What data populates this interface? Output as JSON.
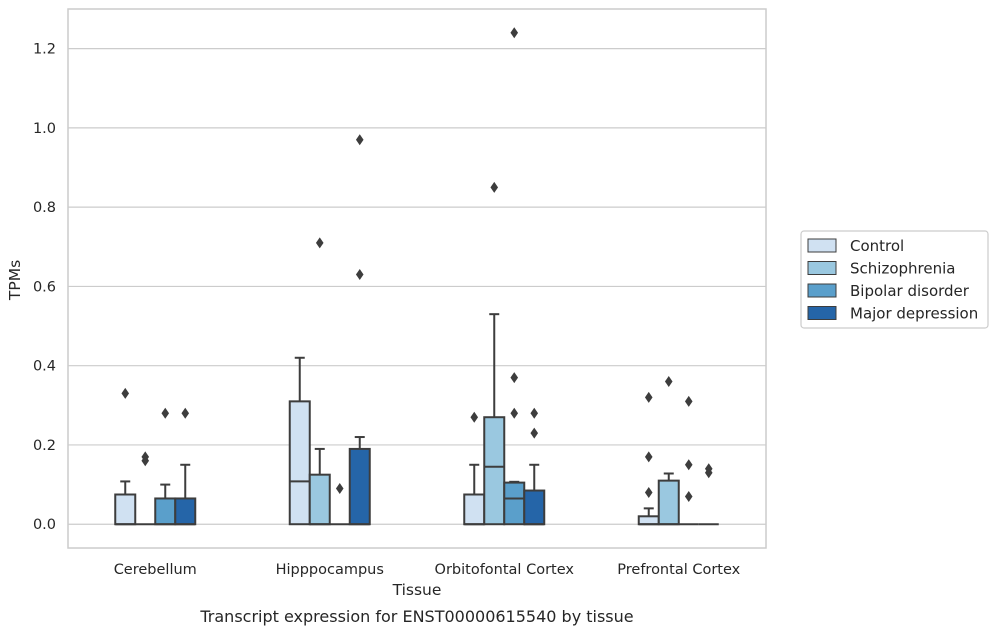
{
  "chart_data": {
    "type": "box",
    "caption": "Transcript expression for ENST00000615540 by tissue",
    "xlabel": "Tissue",
    "ylabel": "TPMs",
    "ylim": [
      -0.06,
      1.3
    ],
    "yticks": [
      0.0,
      0.2,
      0.4,
      0.6,
      0.8,
      1.0,
      1.2
    ],
    "ytick_labels": [
      "0.0",
      "0.2",
      "0.4",
      "0.6",
      "0.8",
      "1.0",
      "1.2"
    ],
    "grid": "horizontal",
    "legend_position": "right",
    "categories": [
      "Cerebellum",
      "Hipppocampus",
      "Orbitofontal Cortex",
      "Prefrontal Cortex"
    ],
    "series": [
      {
        "name": "Control",
        "color": "#d0e1f2",
        "boxes": [
          {
            "q1": 0.0,
            "median": 0.0,
            "q3": 0.075,
            "whisker_low": 0.0,
            "whisker_high": 0.108,
            "outliers": [
              0.33
            ]
          },
          {
            "q1": 0.0,
            "median": 0.108,
            "q3": 0.31,
            "whisker_low": 0.0,
            "whisker_high": 0.42,
            "outliers": []
          },
          {
            "q1": 0.0,
            "median": 0.0,
            "q3": 0.075,
            "whisker_low": 0.0,
            "whisker_high": 0.15,
            "outliers": [
              0.27
            ]
          },
          {
            "q1": 0.0,
            "median": 0.0,
            "q3": 0.02,
            "whisker_low": 0.0,
            "whisker_high": 0.04,
            "outliers": [
              0.08,
              0.17,
              0.32
            ]
          }
        ]
      },
      {
        "name": "Schizophrenia",
        "color": "#9ac8e0",
        "boxes": [
          {
            "q1": 0.0,
            "median": 0.0,
            "q3": 0.0,
            "whisker_low": 0.0,
            "whisker_high": 0.0,
            "outliers": [
              0.16,
              0.17
            ]
          },
          {
            "q1": 0.0,
            "median": 0.0,
            "q3": 0.125,
            "whisker_low": 0.0,
            "whisker_high": 0.19,
            "outliers": [
              0.71
            ]
          },
          {
            "q1": 0.0,
            "median": 0.145,
            "q3": 0.27,
            "whisker_low": 0.0,
            "whisker_high": 0.53,
            "outliers": [
              0.85
            ]
          },
          {
            "q1": 0.0,
            "median": 0.0,
            "q3": 0.11,
            "whisker_low": 0.0,
            "whisker_high": 0.128,
            "outliers": [
              0.36
            ]
          }
        ]
      },
      {
        "name": "Bipolar disorder",
        "color": "#5a9fcb",
        "boxes": [
          {
            "q1": 0.0,
            "median": 0.0,
            "q3": 0.065,
            "whisker_low": 0.0,
            "whisker_high": 0.1,
            "outliers": [
              0.28
            ]
          },
          {
            "q1": 0.0,
            "median": 0.0,
            "q3": 0.0,
            "whisker_low": 0.0,
            "whisker_high": 0.0,
            "outliers": [
              0.09
            ]
          },
          {
            "q1": 0.0,
            "median": 0.065,
            "q3": 0.105,
            "whisker_low": 0.0,
            "whisker_high": 0.107,
            "outliers": [
              0.28,
              0.37,
              1.24
            ]
          },
          {
            "q1": 0.0,
            "median": 0.0,
            "q3": 0.0,
            "whisker_low": 0.0,
            "whisker_high": 0.0,
            "outliers": [
              0.07,
              0.15,
              0.31
            ]
          }
        ]
      },
      {
        "name": "Major depression",
        "color": "#2565a8",
        "boxes": [
          {
            "q1": 0.0,
            "median": 0.0,
            "q3": 0.065,
            "whisker_low": 0.0,
            "whisker_high": 0.15,
            "outliers": [
              0.28
            ]
          },
          {
            "q1": 0.0,
            "median": 0.0,
            "q3": 0.19,
            "whisker_low": 0.0,
            "whisker_high": 0.22,
            "outliers": [
              0.63,
              0.97
            ]
          },
          {
            "q1": 0.0,
            "median": 0.0,
            "q3": 0.085,
            "whisker_low": 0.0,
            "whisker_high": 0.15,
            "outliers": [
              0.23,
              0.28
            ]
          },
          {
            "q1": 0.0,
            "median": 0.0,
            "q3": 0.0,
            "whisker_low": 0.0,
            "whisker_high": 0.0,
            "outliers": [
              0.13,
              0.14
            ]
          }
        ]
      }
    ]
  },
  "colors": {
    "grid": "#cccccc",
    "frame": "#cccccc",
    "edge": "#3d3d3d",
    "text": "#262626"
  }
}
